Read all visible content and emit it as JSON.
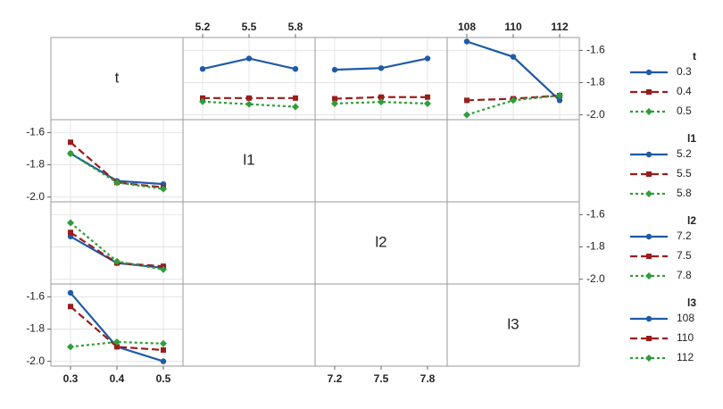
{
  "chart_data": {
    "type": "interaction-matrix",
    "factors": [
      {
        "name": "t",
        "levels": [
          0.3,
          0.4,
          0.5
        ]
      },
      {
        "name": "l1",
        "levels": [
          5.2,
          5.5,
          5.8
        ]
      },
      {
        "name": "l2",
        "levels": [
          7.2,
          7.5,
          7.8
        ]
      },
      {
        "name": "l3",
        "levels": [
          108,
          110,
          112
        ]
      }
    ],
    "ylim": [
      -2.03,
      -1.52
    ],
    "yticks": [
      -1.6,
      -1.8,
      {
        "value": -2,
        "label": "-2.0"
      }
    ],
    "grid": true,
    "colors": [
      "#1f5aa6",
      "#9b1c1c",
      "#2e9e3a"
    ],
    "line_styles": [
      "solid",
      "dashed",
      "dotted"
    ],
    "markers": [
      "circle",
      "square",
      "diamond"
    ],
    "upper": [
      [
        [
          -1.715,
          -1.65,
          -1.715
        ],
        [
          -1.896,
          -1.896,
          -1.896
        ],
        [
          -1.918,
          -1.934,
          -1.95
        ]
      ],
      [
        [
          -1.72,
          -1.71,
          -1.65
        ],
        [
          -1.9,
          -1.89,
          -1.89
        ],
        [
          -1.93,
          -1.92,
          -1.93
        ]
      ],
      [
        [
          -1.545,
          -1.64,
          -1.91
        ],
        [
          -1.91,
          -1.9,
          -1.88
        ],
        [
          -2.0,
          -1.91,
          -1.88
        ]
      ]
    ],
    "lower": [
      [
        [
          -1.73,
          -1.9,
          -1.92
        ],
        [
          -1.66,
          -1.91,
          -1.94
        ],
        [
          -1.73,
          -1.91,
          -1.95
        ]
      ],
      [
        [
          -1.735,
          -1.9,
          -1.93
        ],
        [
          -1.71,
          -1.9,
          -1.92
        ],
        [
          -1.65,
          -1.89,
          -1.94
        ]
      ],
      [
        [
          -1.575,
          -1.91,
          -2.0
        ],
        [
          -1.66,
          -1.91,
          -1.93
        ],
        [
          -1.91,
          -1.88,
          -1.89
        ]
      ]
    ]
  }
}
